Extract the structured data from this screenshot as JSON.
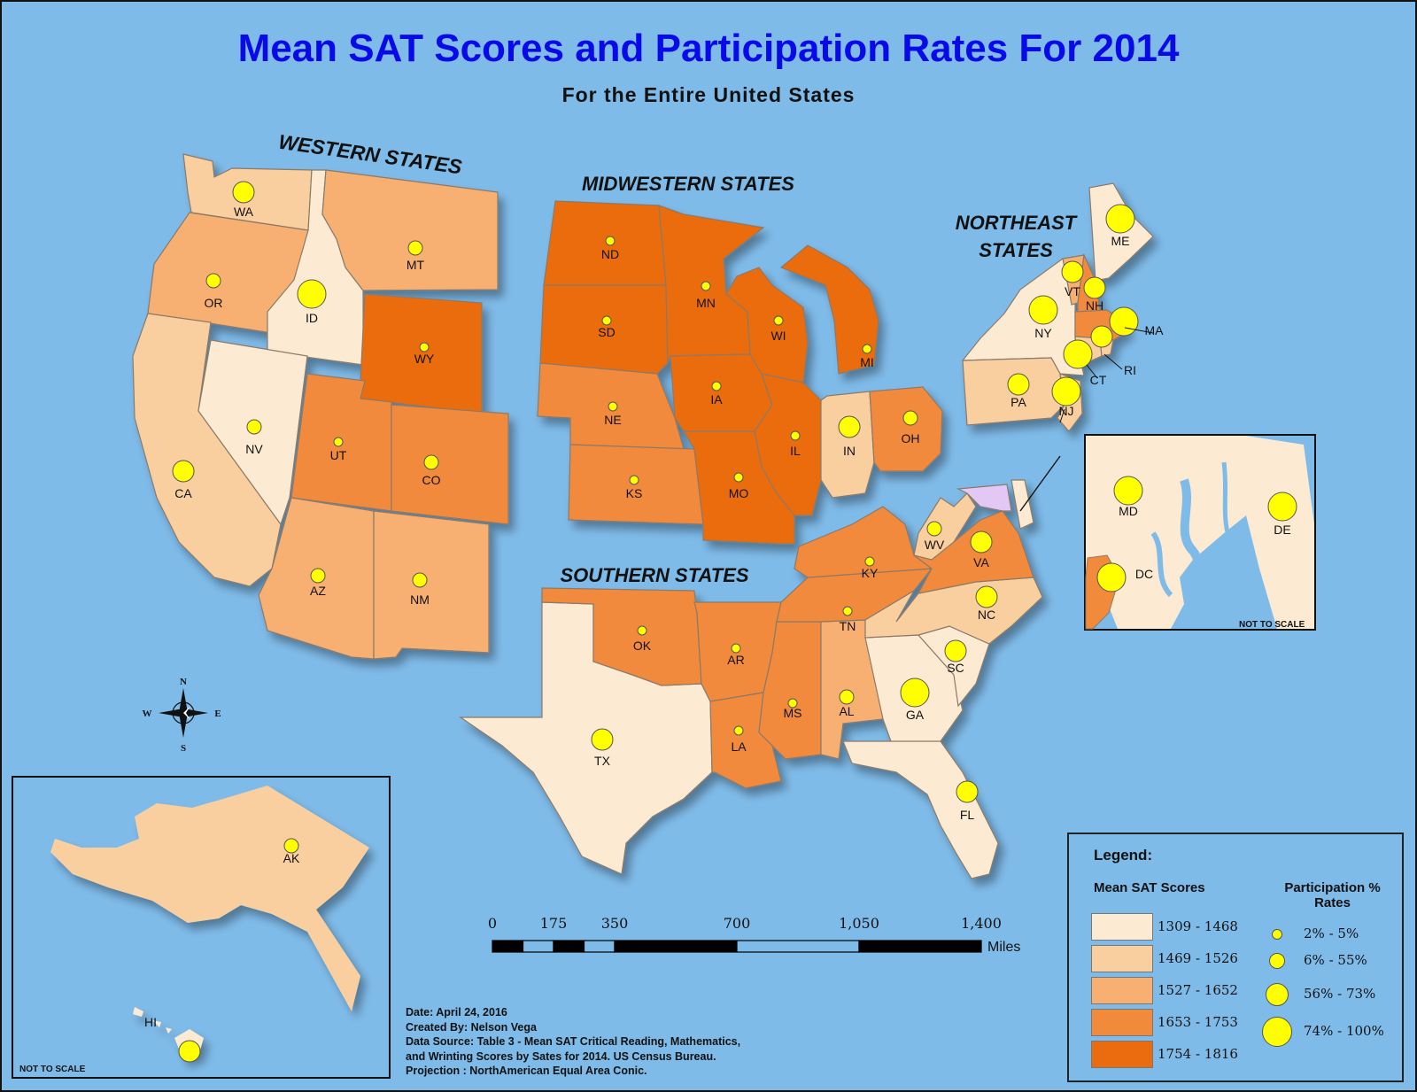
{
  "title": "Mean SAT Scores and Participation Rates For 2014",
  "subtitle": "For the Entire United States",
  "regions": {
    "west": "WESTERN STATES",
    "midwest": "MIDWESTERN STATES",
    "northeast_line1": "NORTHEAST",
    "northeast_line2": "STATES",
    "south": "SOUTHERN STATES"
  },
  "states": [
    {
      "abbr": "WA",
      "score_class": 2,
      "part_class": 3
    },
    {
      "abbr": "OR",
      "score_class": 3,
      "part_class": 2
    },
    {
      "abbr": "CA",
      "score_class": 2,
      "part_class": 3
    },
    {
      "abbr": "ID",
      "score_class": 1,
      "part_class": 4
    },
    {
      "abbr": "NV",
      "score_class": 1,
      "part_class": 2
    },
    {
      "abbr": "MT",
      "score_class": 3,
      "part_class": 2
    },
    {
      "abbr": "WY",
      "score_class": 5,
      "part_class": 1
    },
    {
      "abbr": "UT",
      "score_class": 4,
      "part_class": 1
    },
    {
      "abbr": "CO",
      "score_class": 4,
      "part_class": 2
    },
    {
      "abbr": "AZ",
      "score_class": 3,
      "part_class": 2
    },
    {
      "abbr": "NM",
      "score_class": 3,
      "part_class": 2
    },
    {
      "abbr": "ND",
      "score_class": 5,
      "part_class": 1
    },
    {
      "abbr": "SD",
      "score_class": 5,
      "part_class": 1
    },
    {
      "abbr": "NE",
      "score_class": 4,
      "part_class": 1
    },
    {
      "abbr": "KS",
      "score_class": 4,
      "part_class": 1
    },
    {
      "abbr": "MN",
      "score_class": 5,
      "part_class": 1
    },
    {
      "abbr": "IA",
      "score_class": 5,
      "part_class": 1
    },
    {
      "abbr": "MO",
      "score_class": 5,
      "part_class": 1
    },
    {
      "abbr": "WI",
      "score_class": 5,
      "part_class": 1
    },
    {
      "abbr": "IL",
      "score_class": 5,
      "part_class": 1
    },
    {
      "abbr": "MI",
      "score_class": 5,
      "part_class": 1
    },
    {
      "abbr": "IN",
      "score_class": 2,
      "part_class": 3
    },
    {
      "abbr": "OH",
      "score_class": 4,
      "part_class": 2
    },
    {
      "abbr": "ME",
      "score_class": 1,
      "part_class": 4
    },
    {
      "abbr": "VT",
      "score_class": 3,
      "part_class": 3
    },
    {
      "abbr": "NH",
      "score_class": 4,
      "part_class": 3
    },
    {
      "abbr": "MA",
      "score_class": 4,
      "part_class": 4
    },
    {
      "abbr": "NY",
      "score_class": 1,
      "part_class": 4
    },
    {
      "abbr": "RI",
      "score_class": 2,
      "part_class": 3
    },
    {
      "abbr": "CT",
      "score_class": 2,
      "part_class": 4
    },
    {
      "abbr": "PA",
      "score_class": 2,
      "part_class": 3
    },
    {
      "abbr": "NJ",
      "score_class": 2,
      "part_class": 4
    },
    {
      "abbr": "WV",
      "score_class": 2,
      "part_class": 2
    },
    {
      "abbr": "VA",
      "score_class": 4,
      "part_class": 3
    },
    {
      "abbr": "KY",
      "score_class": 4,
      "part_class": 1
    },
    {
      "abbr": "TN",
      "score_class": 4,
      "part_class": 1
    },
    {
      "abbr": "NC",
      "score_class": 2,
      "part_class": 3
    },
    {
      "abbr": "SC",
      "score_class": 1,
      "part_class": 3
    },
    {
      "abbr": "GA",
      "score_class": 1,
      "part_class": 4
    },
    {
      "abbr": "FL",
      "score_class": 1,
      "part_class": 3
    },
    {
      "abbr": "AL",
      "score_class": 3,
      "part_class": 2
    },
    {
      "abbr": "MS",
      "score_class": 4,
      "part_class": 1
    },
    {
      "abbr": "LA",
      "score_class": 4,
      "part_class": 1
    },
    {
      "abbr": "AR",
      "score_class": 4,
      "part_class": 1
    },
    {
      "abbr": "OK",
      "score_class": 4,
      "part_class": 1
    },
    {
      "abbr": "TX",
      "score_class": 1,
      "part_class": 3
    },
    {
      "abbr": "AK",
      "score_class": 2,
      "part_class": 2
    },
    {
      "abbr": "HI",
      "score_class": 1,
      "part_class": 3
    },
    {
      "abbr": "MD",
      "score_class": 1,
      "part_class": 4
    },
    {
      "abbr": "DE",
      "score_class": 1,
      "part_class": 4
    },
    {
      "abbr": "DC",
      "score_class": 4,
      "part_class": 4
    }
  ],
  "inset_note": "NOT TO SCALE",
  "compass": {
    "n": "N",
    "s": "S",
    "e": "E",
    "w": "W"
  },
  "scale_bar": {
    "ticks": [
      "0",
      "175",
      "350",
      "700",
      "1,050",
      "1,400"
    ],
    "unit": "Miles"
  },
  "legend": {
    "title": "Legend:",
    "scores_heading": "Mean SAT Scores",
    "part_heading_line1": "Participation %",
    "part_heading_line2": "Rates",
    "score_classes": [
      {
        "label": "1309 - 1468",
        "color": "#fcebd2"
      },
      {
        "label": "1469 - 1526",
        "color": "#f9cfa0"
      },
      {
        "label": "1527 - 1652",
        "color": "#f7af72"
      },
      {
        "label": "1653 - 1753",
        "color": "#f28a3c"
      },
      {
        "label": "1754 - 1816",
        "color": "#ea6c0e"
      }
    ],
    "part_classes": [
      "2% - 5%",
      "6% - 55%",
      "56% - 73%",
      "74% - 100%"
    ]
  },
  "credits": {
    "date": "Date: April 24, 2016",
    "author": "Created By: Nelson Vega",
    "source1": "Data Source: Table 3 - Mean SAT Critical Reading, Mathematics,",
    "source2": "and Wrinting Scores by Sates for 2014.  US Census Bureau.",
    "projection": "Projection : NorthAmerican Equal Area Conic."
  },
  "colors": {
    "water": "#7fbbe9",
    "dot": "#ffff00",
    "dc_purple": "#e3c8f5"
  }
}
